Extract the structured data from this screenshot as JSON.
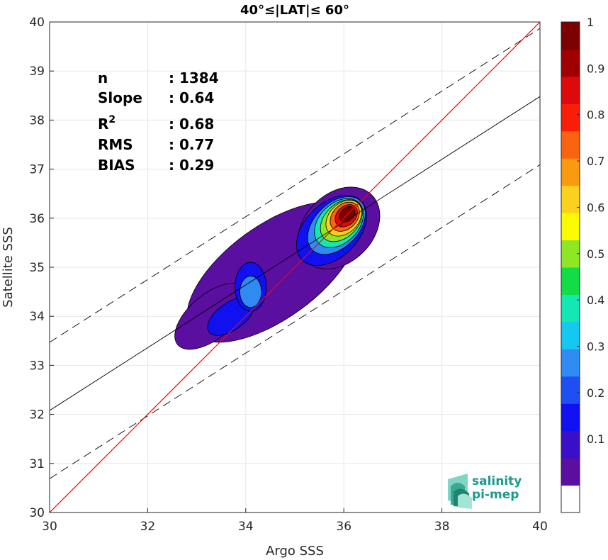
{
  "chart_data": {
    "type": "scatter",
    "title": "40°≤|LAT|≤ 60°",
    "xlabel": "Argo SSS",
    "ylabel": "Satellite SSS",
    "xlim": [
      30,
      40
    ],
    "ylim": [
      30,
      40
    ],
    "xticks": [
      30,
      32,
      34,
      36,
      38,
      40
    ],
    "yticks": [
      30,
      31,
      32,
      33,
      34,
      35,
      36,
      37,
      38,
      39,
      40
    ],
    "grid": true,
    "stats": [
      {
        "label": "n",
        "value": ": 1384"
      },
      {
        "label": "Slope",
        "value": ": 0.64"
      },
      {
        "label": "R",
        "sup": "2",
        "value": ": 0.68"
      },
      {
        "label": "RMS",
        "value": ": 0.77"
      },
      {
        "label": "BIAS",
        "value": ": 0.29"
      }
    ],
    "regression": {
      "slope": 0.64,
      "intercept_at_30": 32.08,
      "value_at_40": 38.42
    },
    "rms_band_offset": 1.39,
    "identity_line": {
      "from": [
        30,
        30
      ],
      "to": [
        40,
        40
      ],
      "color": "#ff0000"
    },
    "density_contours": {
      "levels": [
        0.05,
        0.15,
        0.25,
        0.35,
        0.45,
        0.55,
        0.65,
        0.75,
        0.85,
        0.95
      ],
      "regions": [
        {
          "level": 0.05,
          "center": [
            34.55,
            34.9
          ],
          "rx": 2.05,
          "ry": 0.95,
          "angle": -36
        },
        {
          "level": 0.05,
          "center": [
            33.3,
            34.0
          ],
          "rx": 0.9,
          "ry": 0.45,
          "angle": -40
        },
        {
          "level": 0.05,
          "center": [
            35.9,
            35.8
          ],
          "rx": 0.95,
          "ry": 0.7,
          "angle": -45
        },
        {
          "level": 0.15,
          "center": [
            33.7,
            34.0
          ],
          "rx": 0.55,
          "ry": 0.28,
          "angle": -35
        },
        {
          "level": 0.15,
          "center": [
            34.1,
            34.6
          ],
          "rx": 0.32,
          "ry": 0.5,
          "angle": 0
        },
        {
          "level": 0.15,
          "center": [
            35.75,
            35.75
          ],
          "rx": 0.85,
          "ry": 0.55,
          "angle": -45
        },
        {
          "level": 0.25,
          "center": [
            34.1,
            34.5
          ],
          "rx": 0.22,
          "ry": 0.32,
          "angle": 0
        },
        {
          "level": 0.25,
          "center": [
            35.85,
            35.85
          ],
          "rx": 0.7,
          "ry": 0.45,
          "angle": -45
        },
        {
          "level": 0.35,
          "center": [
            35.9,
            35.9
          ],
          "rx": 0.58,
          "ry": 0.4,
          "angle": -45
        },
        {
          "level": 0.45,
          "center": [
            35.95,
            35.95
          ],
          "rx": 0.5,
          "ry": 0.34,
          "angle": -45
        },
        {
          "level": 0.55,
          "center": [
            36.0,
            36.0
          ],
          "rx": 0.42,
          "ry": 0.3,
          "angle": -45
        },
        {
          "level": 0.65,
          "center": [
            36.02,
            36.03
          ],
          "rx": 0.34,
          "ry": 0.25,
          "angle": -45
        },
        {
          "level": 0.75,
          "center": [
            36.05,
            36.05
          ],
          "rx": 0.26,
          "ry": 0.19,
          "angle": -45
        },
        {
          "level": 0.85,
          "center": [
            36.07,
            36.08
          ],
          "rx": 0.18,
          "ry": 0.13,
          "angle": -45
        }
      ]
    },
    "colorbar": {
      "range": [
        0,
        1
      ],
      "ticks": [
        "1",
        "0.9",
        "0.8",
        "0.7",
        "0.6",
        "0.5",
        "0.4",
        "0.3",
        "0.2",
        "0.1"
      ],
      "colors": [
        "#ffffff",
        "#5a0fa0",
        "#3a0fc8",
        "#1010f0",
        "#1f4ff2",
        "#2f8af2",
        "#14c8f0",
        "#14e6b4",
        "#12dc46",
        "#8ee624",
        "#fafa00",
        "#fad21e",
        "#fa9a10",
        "#fa6410",
        "#fa1e0a",
        "#dc0a0a",
        "#a00000",
        "#7d0000"
      ]
    },
    "logo": {
      "line1": "salinity",
      "line2": "pi-mep"
    }
  }
}
